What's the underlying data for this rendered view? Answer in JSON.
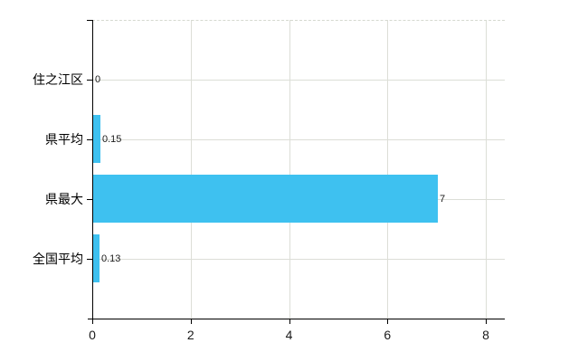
{
  "chart_data": {
    "type": "bar",
    "orientation": "horizontal",
    "title": "",
    "xlabel": "",
    "ylabel": "",
    "categories": [
      "住之江区",
      "県平均",
      "県最大",
      "全国平均"
    ],
    "values": [
      0,
      0.15,
      7,
      0.13
    ],
    "value_labels": [
      "0",
      "0.15",
      "7",
      "0.13"
    ],
    "xlim": [
      0,
      8
    ],
    "xticks": [
      0,
      2,
      4,
      6,
      8
    ],
    "xtick_labels": [
      "0",
      "2",
      "4",
      "6",
      "8"
    ],
    "grid": true,
    "legend": "none",
    "colors": {
      "bar": "#3ec1f0",
      "gridline": "#dcded7",
      "top_border_dashed": "#d5d9d0",
      "axis": "#000000",
      "text": "#000000",
      "background": "#ffffff"
    }
  }
}
